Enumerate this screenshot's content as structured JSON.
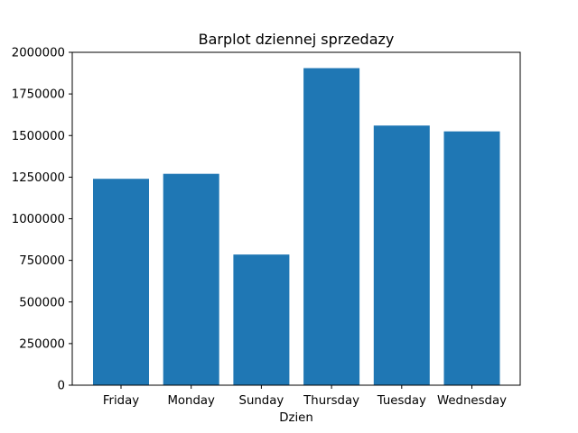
{
  "chart_data": {
    "type": "bar",
    "title": "Barplot dziennej sprzedazy",
    "xlabel": "Dzien",
    "ylabel": "",
    "categories": [
      "Friday",
      "Monday",
      "Sunday",
      "Thursday",
      "Tuesday",
      "Wednesday"
    ],
    "values": [
      1240000,
      1270000,
      785000,
      1905000,
      1560000,
      1525000
    ],
    "ylim": [
      0,
      2000000
    ],
    "yticks": [
      0,
      250000,
      500000,
      750000,
      1000000,
      1250000,
      1500000,
      1750000,
      2000000
    ],
    "ytick_labels": [
      "0",
      "250000",
      "500000",
      "750000",
      "1000000",
      "1250000",
      "1500000",
      "1750000",
      "2000000"
    ],
    "bar_color": "#1f77b4",
    "grid": false,
    "legend": "none"
  }
}
